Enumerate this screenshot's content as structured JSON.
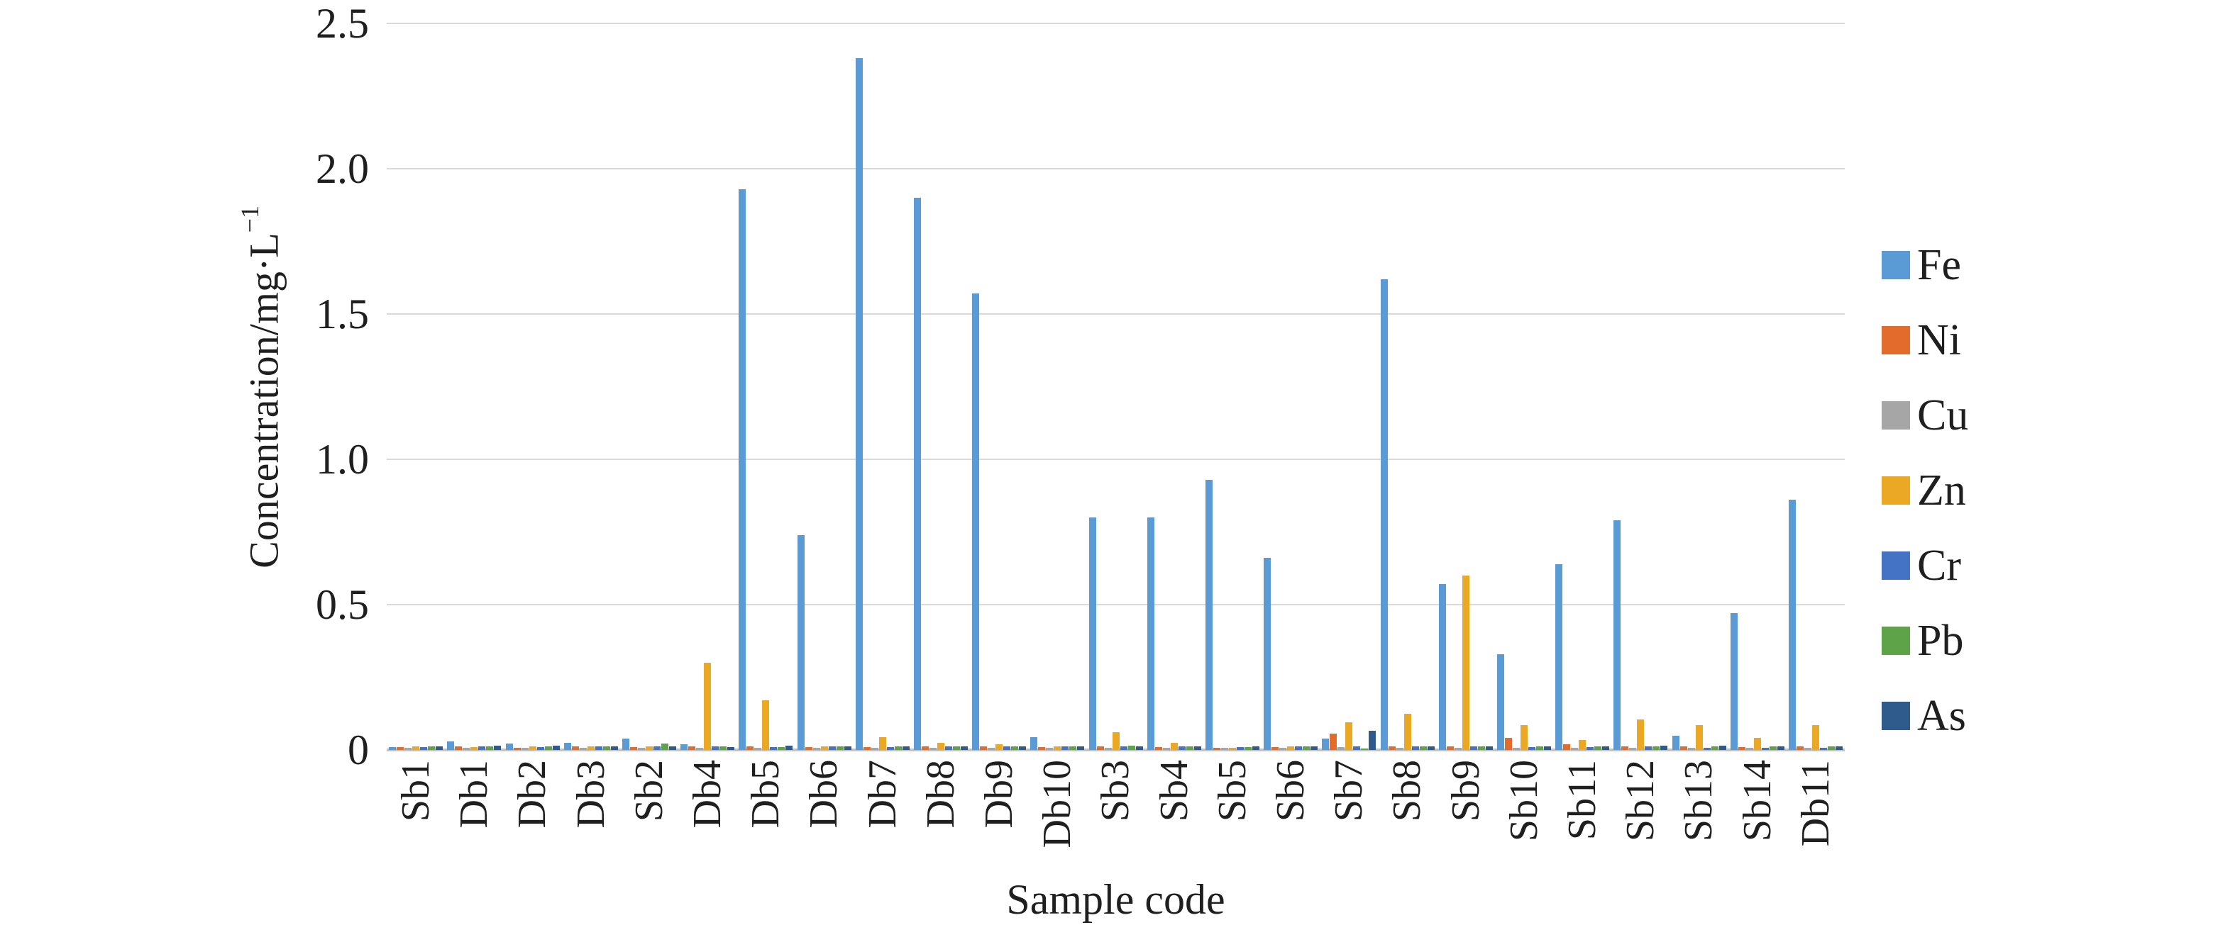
{
  "chart_data": {
    "type": "bar",
    "title": "",
    "xlabel": "Sample code",
    "ylabel_main": "Concentration/mg·L",
    "ylabel_sup": "−1",
    "ylim": [
      0,
      2.5
    ],
    "ytick_step": 0.5,
    "yticks_top_to_bottom": [
      "2.5",
      "2.0",
      "1.5",
      "1.0",
      "0.5",
      "0"
    ],
    "grid": "horizontal",
    "legend_position": "right",
    "axis_color": "#c3c3c3",
    "gridline_color": "#d9d9d9",
    "categories": [
      "Sb1",
      "Db1",
      "Db2",
      "Db3",
      "Sb2",
      "Db4",
      "Db5",
      "Db6",
      "Db7",
      "Db8",
      "Db9",
      "Db10",
      "Sb3",
      "Sb4",
      "Sb5",
      "Sb6",
      "Sb7",
      "Sb8",
      "Sb9",
      "Sb10",
      "Sb11",
      "Sb12",
      "Sb13",
      "Sb14",
      "Db11"
    ],
    "series": [
      {
        "name": "Fe",
        "color": "#5b9bd5",
        "values": [
          0.01,
          0.03,
          0.022,
          0.024,
          0.04,
          0.02,
          1.93,
          0.74,
          2.38,
          1.9,
          1.57,
          0.045,
          0.8,
          0.8,
          0.93,
          0.66,
          0.04,
          1.62,
          0.57,
          0.33,
          0.64,
          0.79,
          0.05,
          0.47,
          0.86
        ]
      },
      {
        "name": "Ni",
        "color": "#e36c2c",
        "values": [
          0.01,
          0.012,
          0.008,
          0.012,
          0.01,
          0.012,
          0.012,
          0.01,
          0.01,
          0.012,
          0.012,
          0.01,
          0.012,
          0.01,
          0.008,
          0.01,
          0.055,
          0.012,
          0.012,
          0.042,
          0.02,
          0.012,
          0.012,
          0.01,
          0.012
        ]
      },
      {
        "name": "Cu",
        "color": "#a6a6a6",
        "values": [
          0.008,
          0.008,
          0.008,
          0.008,
          0.008,
          0.008,
          0.008,
          0.008,
          0.008,
          0.008,
          0.008,
          0.008,
          0.008,
          0.008,
          0.008,
          0.008,
          0.01,
          0.008,
          0.008,
          0.008,
          0.008,
          0.008,
          0.008,
          0.008,
          0.008
        ]
      },
      {
        "name": "Zn",
        "color": "#eba824",
        "values": [
          0.012,
          0.01,
          0.012,
          0.012,
          0.012,
          0.3,
          0.17,
          0.012,
          0.045,
          0.025,
          0.02,
          0.012,
          0.06,
          0.025,
          0.008,
          0.012,
          0.095,
          0.125,
          0.6,
          0.085,
          0.035,
          0.105,
          0.085,
          0.042,
          0.085
        ]
      },
      {
        "name": "Cr",
        "color": "#4472c4",
        "values": [
          0.01,
          0.012,
          0.01,
          0.012,
          0.012,
          0.012,
          0.01,
          0.012,
          0.01,
          0.012,
          0.012,
          0.012,
          0.012,
          0.012,
          0.01,
          0.012,
          0.012,
          0.012,
          0.012,
          0.01,
          0.01,
          0.012,
          0.008,
          0.008,
          0.008
        ]
      },
      {
        "name": "Pb",
        "color": "#5fa348",
        "values": [
          0.012,
          0.012,
          0.012,
          0.012,
          0.022,
          0.012,
          0.01,
          0.012,
          0.012,
          0.012,
          0.012,
          0.012,
          0.015,
          0.012,
          0.01,
          0.012,
          0.005,
          0.012,
          0.012,
          0.012,
          0.012,
          0.012,
          0.012,
          0.012,
          0.012
        ]
      },
      {
        "name": "As",
        "color": "#2f5b8c",
        "values": [
          0.012,
          0.015,
          0.015,
          0.012,
          0.012,
          0.01,
          0.015,
          0.012,
          0.012,
          0.012,
          0.012,
          0.012,
          0.012,
          0.012,
          0.012,
          0.012,
          0.065,
          0.012,
          0.012,
          0.012,
          0.012,
          0.015,
          0.015,
          0.012,
          0.012
        ]
      }
    ]
  }
}
